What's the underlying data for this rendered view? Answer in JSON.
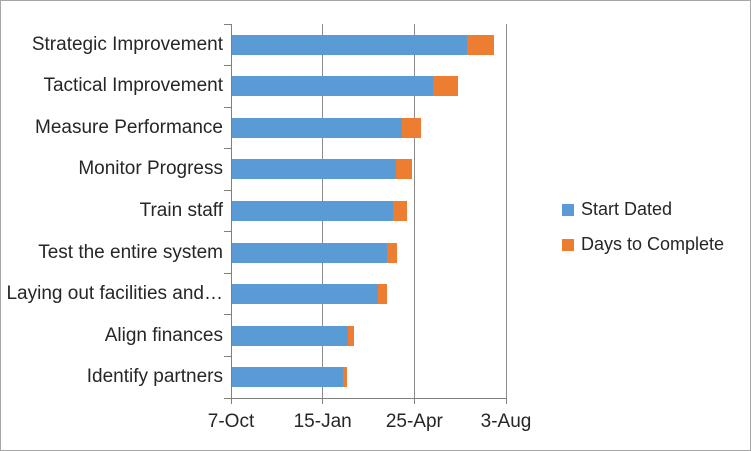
{
  "chart_data": {
    "type": "bar",
    "orientation": "horizontal",
    "stacked": true,
    "title": "",
    "xlabel": "",
    "ylabel": "",
    "categories": [
      "Strategic Improvement",
      "Tactical Improvement",
      "Measure Performance",
      "Monitor Progress",
      "Train staff",
      "Test the entire system",
      "Laying out facilities and…",
      "Align finances",
      "Identify partners"
    ],
    "series": [
      {
        "name": "Start Dated",
        "color": "#5b9bd5",
        "values_days_after_first_tick": [
          256,
          219,
          185,
          179,
          176,
          169,
          159,
          126,
          121
        ]
      },
      {
        "name": "Days to Complete",
        "color": "#ed7d31",
        "values_days_after_first_tick": [
          30,
          27,
          21,
          17,
          15,
          11,
          10,
          7,
          4
        ]
      }
    ],
    "x_axis": {
      "tick_labels": [
        "7-Oct",
        "15-Jan",
        "25-Apr",
        "3-Aug"
      ],
      "tick_positions_days": [
        0,
        100,
        200,
        300
      ],
      "range_days": [
        0,
        300
      ],
      "note": "date axis with 100-day major unit starting at 7-Oct"
    },
    "legend": {
      "position": "right",
      "entries": [
        "Start Dated",
        "Days to Complete"
      ]
    },
    "gridlines": true,
    "colors": {
      "gridline": "#8c8c8c",
      "axis": "#808080",
      "text": "#262626",
      "frame_border": "#a6a6a6"
    }
  }
}
